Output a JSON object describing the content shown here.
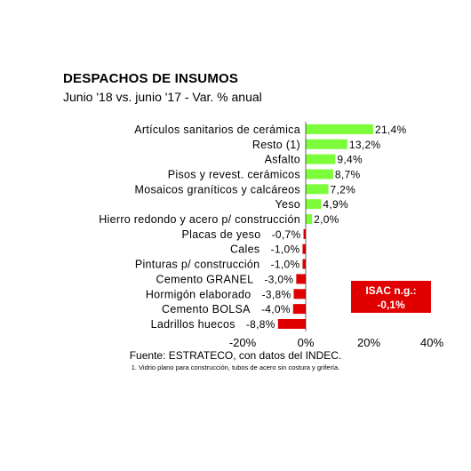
{
  "chart_data": {
    "type": "bar",
    "orientation": "horizontal",
    "title": "DESPACHOS DE INSUMOS",
    "subtitle": "Junio '18 vs. junio '17 - Var. % anual",
    "categories": [
      "Artículos sanitarios de cerámica",
      "Resto (1)",
      "Asfalto",
      "Pisos y revest. cerámicos",
      "Mosaicos graníticos y calcáreos",
      "Yeso",
      "Hierro redondo y acero p/ construcción",
      "Placas de yeso",
      "Cales",
      "Pinturas p/ construcción",
      "Cemento GRANEL",
      "Hormigón elaborado",
      "Cemento BOLSA",
      "Ladrillos huecos"
    ],
    "values": [
      21.4,
      13.2,
      9.4,
      8.7,
      7.2,
      4.9,
      2.0,
      -0.7,
      -1.0,
      -1.0,
      -3.0,
      -3.8,
      -4.0,
      -8.8
    ],
    "value_labels": [
      "21,4%",
      "13,2%",
      "9,4%",
      "8,7%",
      "7,2%",
      "4,9%",
      "2,0%",
      "-0,7%",
      "-1,0%",
      "-1,0%",
      "-3,0%",
      "-3,8%",
      "-4,0%",
      "-8,8%"
    ],
    "xlim": [
      -20,
      40
    ],
    "ticks": [
      {
        "value": -20,
        "label": "-20%"
      },
      {
        "value": 0,
        "label": "0%"
      },
      {
        "value": 20,
        "label": "20%"
      },
      {
        "value": 40,
        "label": "40%"
      }
    ],
    "colors": {
      "positive": "#7CFC3A",
      "negative": "#E10000"
    },
    "grid": false,
    "annotation": {
      "line1": "ISAC n.g.:",
      "line2": "-0,1%"
    }
  },
  "source": "Fuente: ESTRATECO, con datos del INDEC.",
  "footnote": "1. Vidrio plano para construcción, tubos de acero sin costura y grifería."
}
